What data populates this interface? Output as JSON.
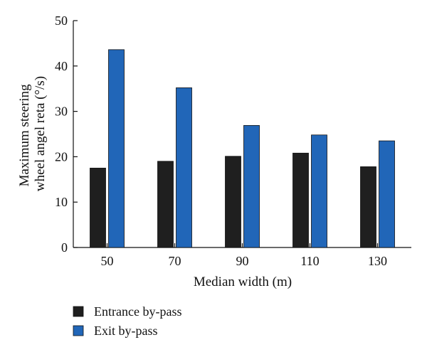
{
  "chart_data": {
    "type": "bar",
    "title": "",
    "xlabel": "Median width (m)",
    "ylabel_lines": [
      "Maximum steering",
      "wheel angel reta (°/s)"
    ],
    "categories": [
      "50",
      "70",
      "90",
      "110",
      "130"
    ],
    "series": [
      {
        "name": "Entrance by-pass",
        "color": "#1f1f1f",
        "values": [
          17.5,
          19.0,
          20.1,
          20.8,
          17.8
        ]
      },
      {
        "name": "Exit by-pass",
        "color": "#2166b8",
        "values": [
          43.6,
          35.2,
          26.9,
          24.8,
          23.5
        ]
      }
    ],
    "ylim": [
      0,
      50
    ],
    "yticks": [
      "0",
      "10",
      "20",
      "30",
      "40",
      "50"
    ],
    "grid": false,
    "legend_position": "bottom-left"
  }
}
